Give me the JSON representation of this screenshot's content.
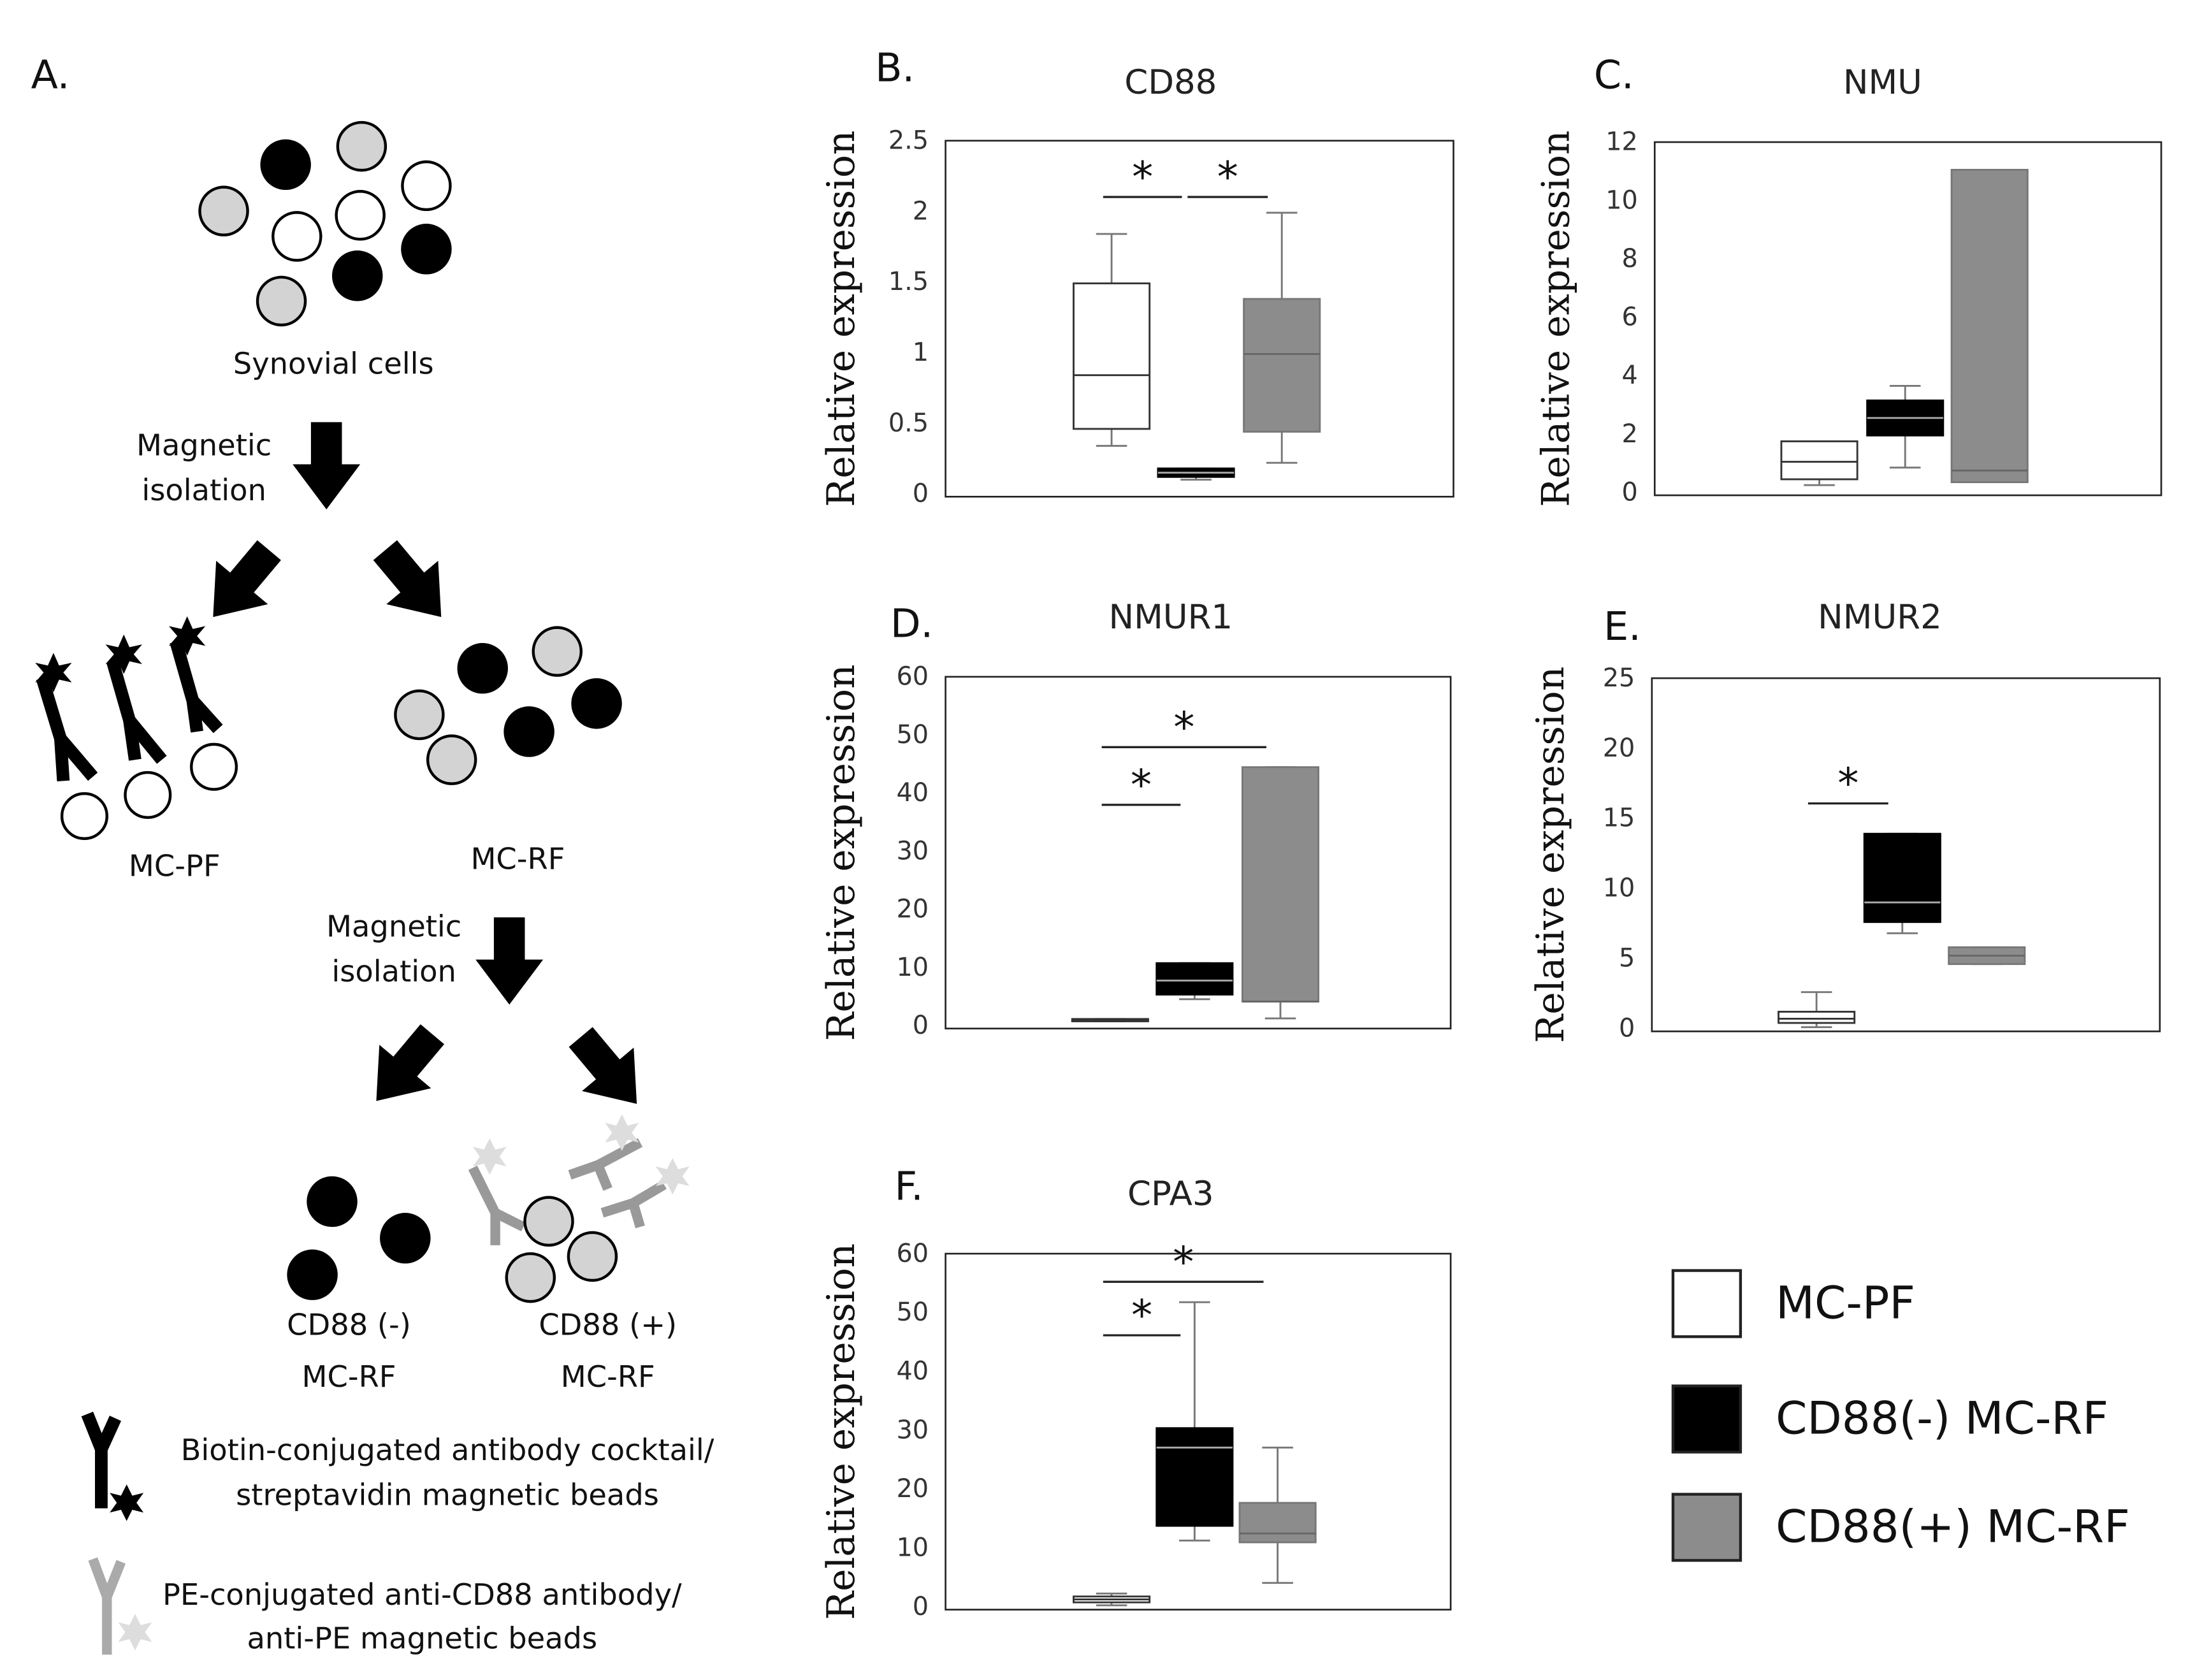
{
  "panel_a": {
    "label": "A.",
    "start": "Synovial cells",
    "step1": [
      "Magnetic",
      "isolation"
    ],
    "fraction1": "MC-PF",
    "fraction2": "MC-RF",
    "step2": [
      "Magnetic",
      "isolation"
    ],
    "fraction3": [
      "CD88 (-)",
      "MC-RF"
    ],
    "fraction4": [
      "CD88 (+)",
      "MC-RF"
    ],
    "key": [
      [
        "Biotin-conjugated antibody cocktail/",
        "streptavidin magnetic beads"
      ],
      [
        "PE-conjugated anti-CD88 antibody/",
        "anti-PE magnetic beads"
      ]
    ]
  },
  "groups": [
    {
      "name": "MC-PF",
      "color": "#ffffff",
      "stroke": "#333333",
      "median_color": "#333333"
    },
    {
      "name": "CD88(-) MC-RF",
      "color": "#000000",
      "stroke": "#000000",
      "median_color": "#aaaaaa"
    },
    {
      "name": "CD88(+) MC-RF",
      "color": "#8c8c8c",
      "stroke": "#777777",
      "median_color": "#666666"
    }
  ],
  "chart_data": [
    {
      "type": "box",
      "panel": "B.",
      "title": "CD88",
      "ylabel": "Relative expression",
      "ylim": [
        0,
        2.5
      ],
      "yticks": [
        0,
        0.5,
        1,
        1.5,
        2,
        2.5
      ],
      "boxes": [
        {
          "min": 0.35,
          "q1": 0.47,
          "median": 0.85,
          "q3": 1.5,
          "max": 1.85
        },
        {
          "min": 0.11,
          "q1": 0.13,
          "median": 0.16,
          "q3": 0.19,
          "max": 0.19
        },
        {
          "min": 0.23,
          "q1": 0.45,
          "median": 1.0,
          "q3": 1.39,
          "max": 2.0
        }
      ],
      "significance": [
        {
          "groups": [
            0,
            1
          ],
          "label": "*"
        },
        {
          "groups": [
            1,
            2
          ],
          "label": "*"
        }
      ]
    },
    {
      "type": "box",
      "panel": "C.",
      "title": "NMU",
      "ylabel": "Relative expression",
      "ylim": [
        0,
        12
      ],
      "yticks": [
        0,
        2,
        4,
        6,
        8,
        10,
        12
      ],
      "boxes": [
        {
          "min": 0.3,
          "q1": 0.5,
          "median": 1.1,
          "q3": 1.8,
          "max": 1.8
        },
        {
          "min": 0.9,
          "q1": 2.0,
          "median": 2.6,
          "q3": 3.2,
          "max": 3.7
        },
        {
          "min": 0.4,
          "q1": 0.4,
          "median": 0.8,
          "q3": 11.1,
          "max": 11.1
        }
      ],
      "significance": []
    },
    {
      "type": "box",
      "panel": "D.",
      "title": "NMUR1",
      "ylabel": "Relative expression",
      "ylim": [
        0,
        60
      ],
      "yticks": [
        0,
        10,
        20,
        30,
        40,
        50,
        60
      ],
      "boxes": [
        {
          "min": 1.0,
          "q1": 1.0,
          "median": 1.2,
          "q3": 1.4,
          "max": 1.4
        },
        {
          "min": 4.8,
          "q1": 5.6,
          "median": 8,
          "q3": 11,
          "max": 11
        },
        {
          "min": 1.5,
          "q1": 4.4,
          "median": 4.4,
          "q3": 44.7,
          "max": 44.7
        }
      ],
      "significance": [
        {
          "groups": [
            0,
            1
          ],
          "label": "*"
        },
        {
          "groups": [
            0,
            2
          ],
          "label": "*"
        }
      ]
    },
    {
      "type": "box",
      "panel": "E.",
      "title": "NMUR2",
      "ylabel": "Relative expression",
      "ylim": [
        0,
        25
      ],
      "yticks": [
        0,
        5,
        10,
        15,
        20,
        25
      ],
      "boxes": [
        {
          "min": 0.2,
          "q1": 0.5,
          "median": 0.8,
          "q3": 1.3,
          "max": 2.7
        },
        {
          "min": 6.9,
          "q1": 7.7,
          "median": 9.1,
          "q3": 14,
          "max": 14
        },
        {
          "min": 4.7,
          "q1": 4.7,
          "median": 5.3,
          "q3": 5.9,
          "max": 5.9
        }
      ],
      "significance": [
        {
          "groups": [
            0,
            1
          ],
          "label": "*"
        }
      ]
    },
    {
      "type": "box",
      "panel": "F.",
      "title": "CPA3",
      "ylabel": "Relative expression",
      "ylim": [
        0,
        60
      ],
      "yticks": [
        0,
        10,
        20,
        30,
        40,
        50,
        60
      ],
      "boxes": [
        {
          "min": 0.5,
          "q1": 1.0,
          "median": 1.5,
          "q3": 2.0,
          "max": 2.5
        },
        {
          "min": 11.5,
          "q1": 14,
          "median": 27.3,
          "q3": 30.6,
          "max": 52
        },
        {
          "min": 4.3,
          "q1": 11.2,
          "median": 12.7,
          "q3": 17.9,
          "max": 27.3
        }
      ],
      "significance": [
        {
          "groups": [
            0,
            1
          ],
          "label": "*"
        },
        {
          "groups": [
            0,
            2
          ],
          "label": "*"
        }
      ]
    }
  ]
}
